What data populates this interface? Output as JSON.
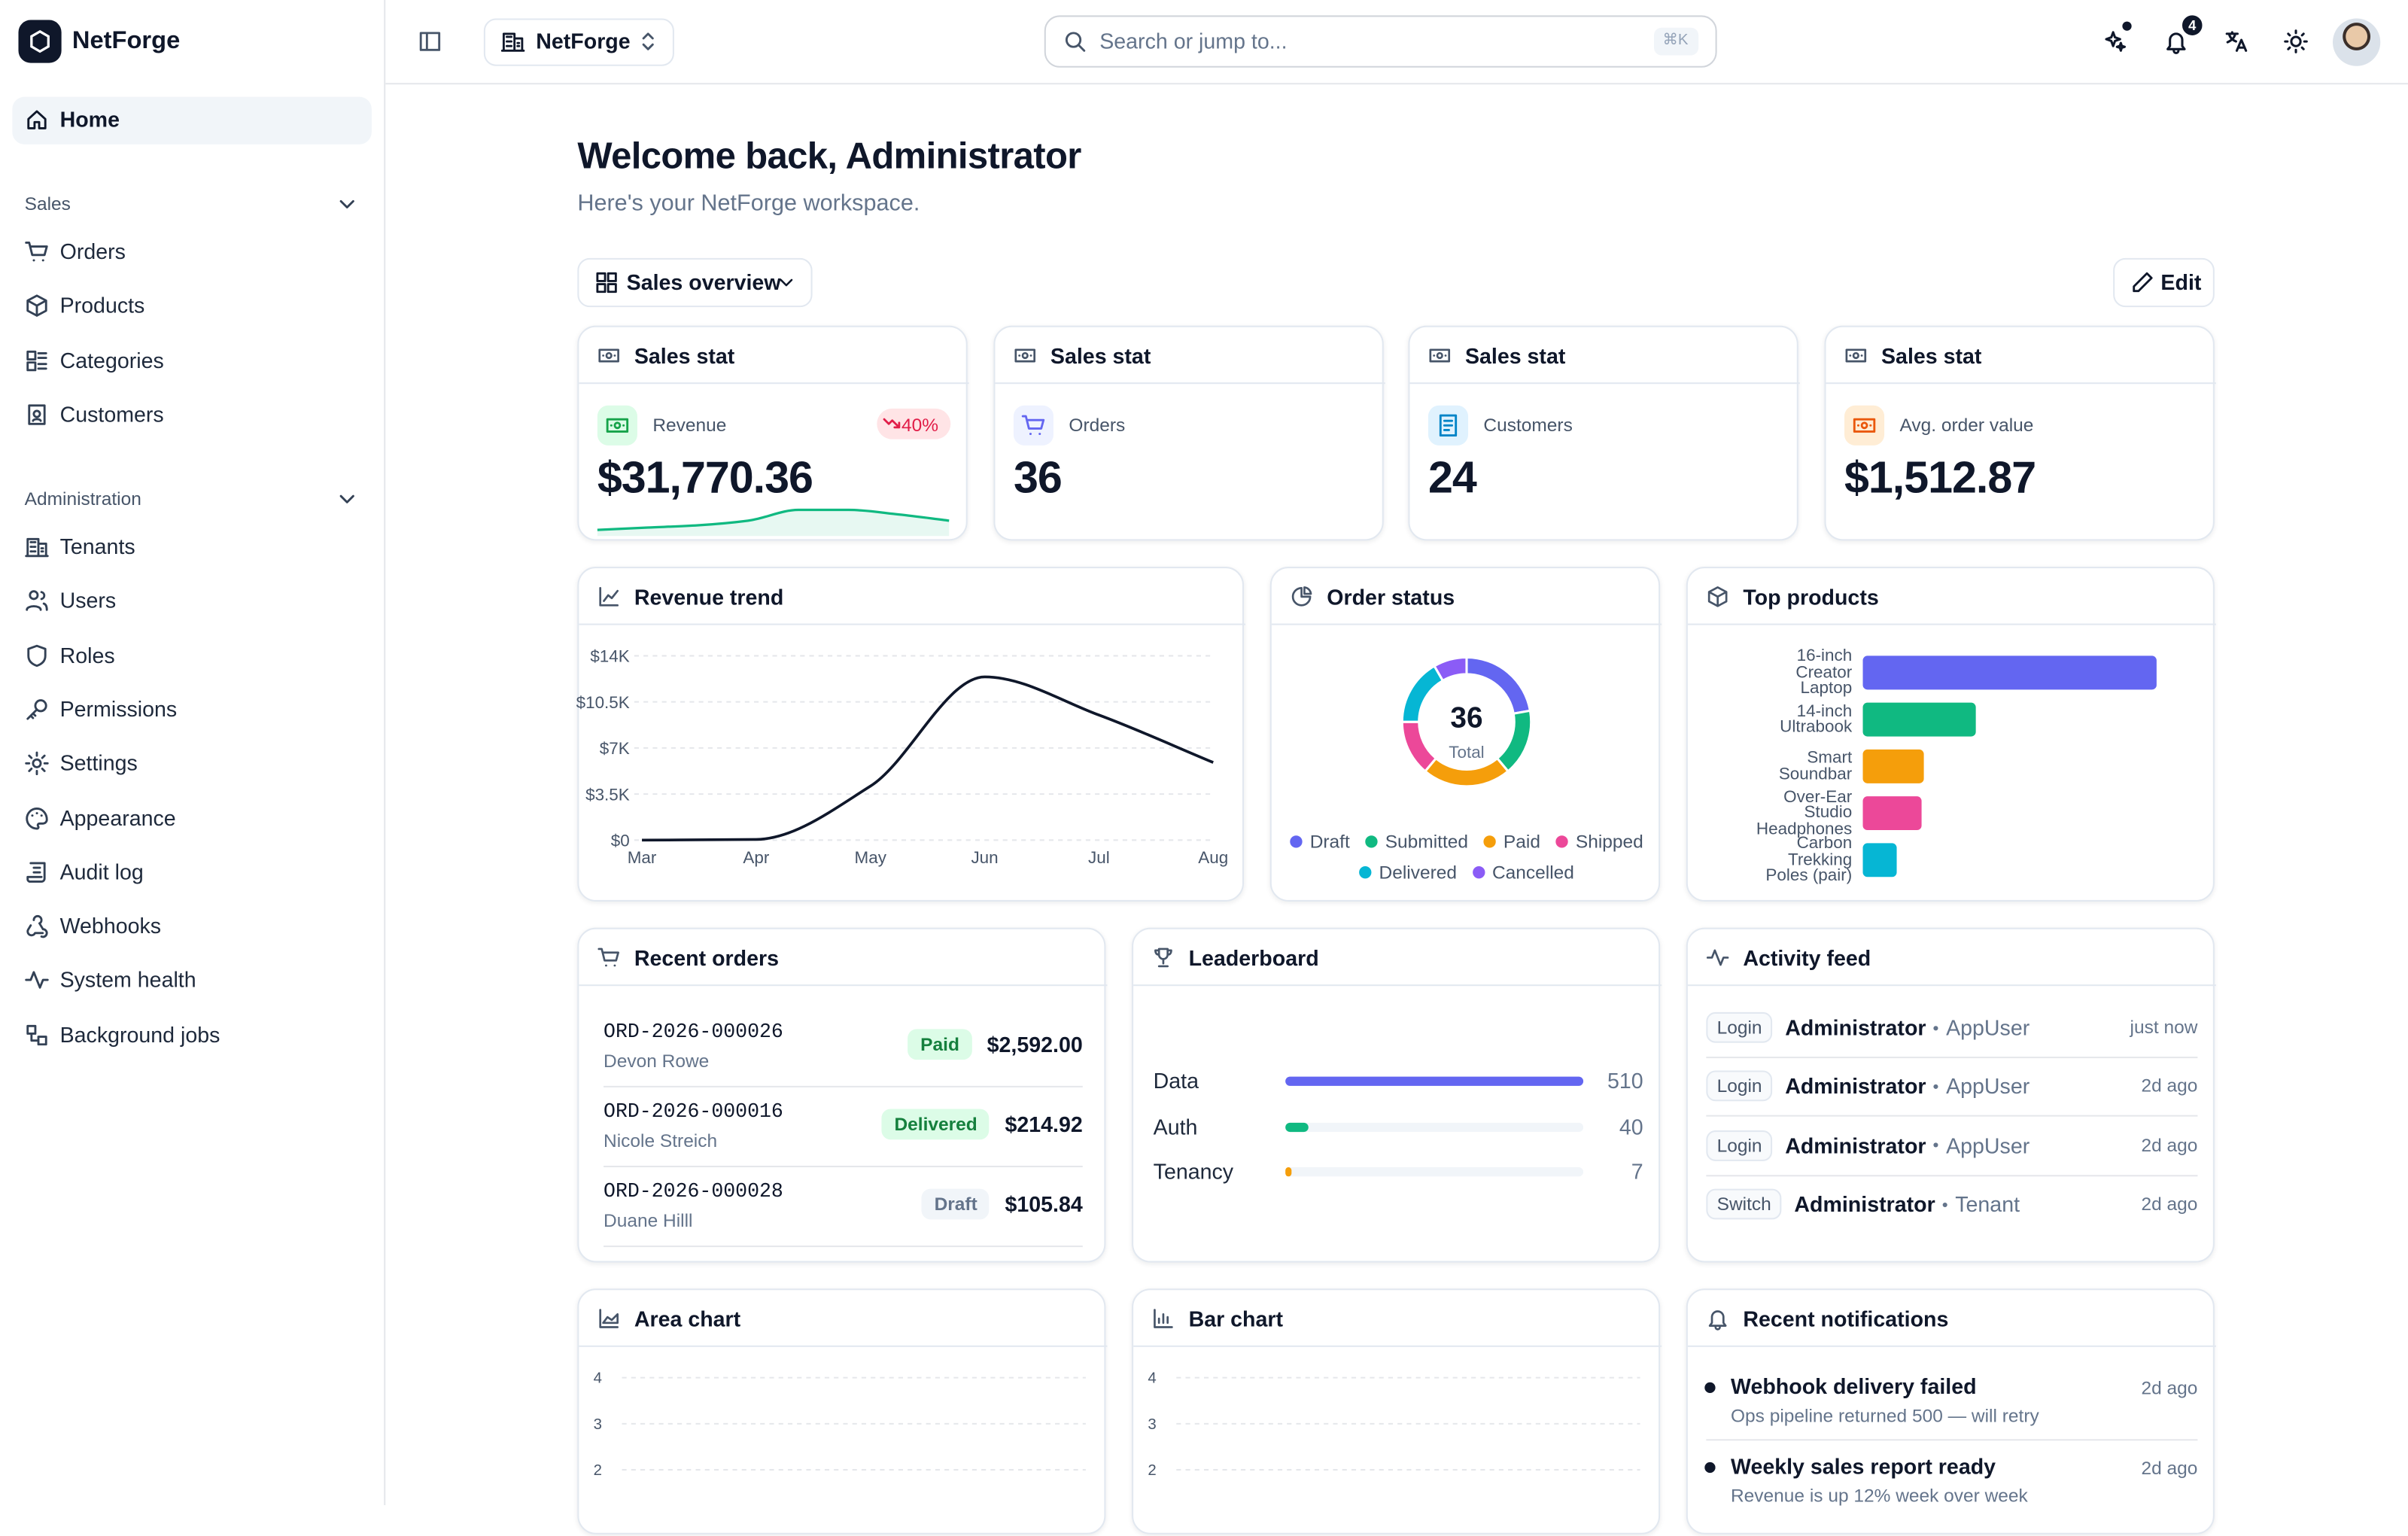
{
  "sidebar": {
    "brand": "NetForge",
    "home": "Home",
    "sections": [
      {
        "title": "Sales",
        "items": [
          "Orders",
          "Products",
          "Categories",
          "Customers"
        ]
      },
      {
        "title": "Administration",
        "items": [
          "Tenants",
          "Users",
          "Roles",
          "Permissions",
          "Settings",
          "Appearance",
          "Audit log",
          "Webhooks",
          "System health",
          "Background jobs"
        ]
      }
    ]
  },
  "topbar": {
    "workspace": "NetForge",
    "search_placeholder": "Search or jump to...",
    "search_shortcut": "⌘K",
    "notification_count": 4
  },
  "header": {
    "title": "Welcome back, Administrator",
    "subtitle": "Here's your NetForge workspace.",
    "view": "Sales overview",
    "edit": "Edit"
  },
  "stats": [
    {
      "title": "Sales stat",
      "label": "Revenue",
      "value": "$31,770.36",
      "change": "40%",
      "sparkline": [
        1,
        2.5,
        4,
        7,
        14,
        14,
        11,
        7
      ]
    },
    {
      "title": "Sales stat",
      "label": "Orders",
      "value": 36
    },
    {
      "title": "Sales stat",
      "label": "Customers",
      "value": 24
    },
    {
      "title": "Sales stat",
      "label": "Avg. order value",
      "value": "$1,512.87"
    }
  ],
  "revenue_trend": {
    "title": "Revenue trend",
    "chart_data": {
      "type": "line",
      "categories": [
        "Mar",
        "Apr",
        "May",
        "Jun",
        "Jul",
        "Aug"
      ],
      "values": [
        0,
        50,
        4100,
        12400,
        9500,
        5900
      ],
      "color": "#0f172a",
      "ylim": [
        0,
        14000
      ],
      "yticks": [
        {
          "value": 0,
          "label": "$0"
        },
        {
          "value": 3500,
          "label": "$3.5K"
        },
        {
          "value": 7000,
          "label": "$7K"
        },
        {
          "value": 10500,
          "label": "$10.5K"
        },
        {
          "value": 14000,
          "label": "$14K"
        }
      ],
      "grid": true
    }
  },
  "order_status": {
    "title": "Order status",
    "chart_data": {
      "type": "donut",
      "total": 36,
      "total_label": "Total",
      "categories": [
        "Draft",
        "Submitted",
        "Paid",
        "Shipped",
        "Delivered",
        "Cancelled"
      ],
      "values": [
        8,
        6,
        8,
        5,
        6,
        3
      ],
      "colors": [
        "#6366f1",
        "#10b981",
        "#f59e0b",
        "#ec4899",
        "#06b6d4",
        "#8b5cf6"
      ]
    }
  },
  "top_products": {
    "title": "Top products",
    "chart_data": {
      "type": "hbar",
      "categories": [
        "16-inch Creator Laptop",
        "14-inch Ultrabook",
        "Smart Soundbar",
        "Over-Ear Studio Headphones",
        "Carbon Trekking Poles (pair)"
      ],
      "values": [
        13,
        5,
        2.7,
        2.6,
        1.5
      ],
      "colors": [
        "#6366f1",
        "#10b981",
        "#f59e0b",
        "#ec4899",
        "#06b6d4"
      ],
      "xlim": [
        0,
        14
      ]
    }
  },
  "recent_orders": {
    "title": "Recent orders",
    "rows": [
      {
        "id": "ORD-2026-000026",
        "customer": "Devon Rowe",
        "status": "Paid",
        "amount": "$2,592.00"
      },
      {
        "id": "ORD-2026-000016",
        "customer": "Nicole Streich",
        "status": "Delivered",
        "amount": "$214.92"
      },
      {
        "id": "ORD-2026-000028",
        "customer": "Duane Hilll",
        "status": "Draft",
        "amount": "$105.84"
      }
    ]
  },
  "leaderboard": {
    "title": "Leaderboard",
    "chart_data": {
      "type": "hbar",
      "categories": [
        "Data",
        "Auth",
        "Tenancy"
      ],
      "values": [
        510,
        40,
        7
      ],
      "colors": [
        "#6366f1",
        "#10b981",
        "#f59e0b"
      ],
      "xlim": [
        0,
        510
      ]
    }
  },
  "activity_feed": {
    "title": "Activity feed",
    "rows": [
      {
        "action": "Login",
        "actor": "Administrator",
        "target": "AppUser",
        "time": "just now"
      },
      {
        "action": "Login",
        "actor": "Administrator",
        "target": "AppUser",
        "time": "2d ago"
      },
      {
        "action": "Login",
        "actor": "Administrator",
        "target": "AppUser",
        "time": "2d ago"
      },
      {
        "action": "Switch",
        "actor": "Administrator",
        "target": "Tenant",
        "time": "2d ago"
      }
    ]
  },
  "area_chart": {
    "title": "Area chart",
    "chart_data": {
      "type": "area",
      "ylim": [
        0,
        4
      ],
      "yticks": [
        2,
        3,
        4
      ],
      "grid": true
    }
  },
  "bar_chart": {
    "title": "Bar chart",
    "chart_data": {
      "type": "bar",
      "ylim": [
        0,
        4
      ],
      "yticks": [
        2,
        3,
        4
      ],
      "grid": true
    }
  },
  "notifications": {
    "title": "Recent notifications",
    "items": [
      {
        "title": "Webhook delivery failed",
        "detail": "Ops pipeline returned 500 — will retry",
        "time": "2d ago"
      },
      {
        "title": "Weekly sales report ready",
        "detail": "Revenue is up 12% week over week",
        "time": "2d ago"
      }
    ]
  }
}
